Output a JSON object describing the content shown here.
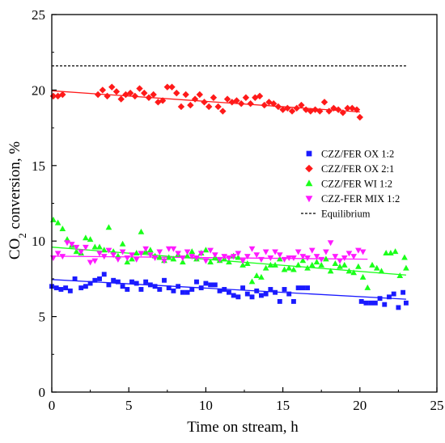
{
  "chart_data": {
    "type": "scatter",
    "title": "",
    "xlabel": "Time on stream, h",
    "ylabel_main": "CO",
    "ylabel_sub": "2",
    "ylabel_rest": " conversion, %",
    "xlim": [
      0,
      25
    ],
    "ylim": [
      0,
      25
    ],
    "xticks": [
      0,
      5,
      10,
      15,
      20,
      25
    ],
    "yticks": [
      0,
      5,
      10,
      15,
      20,
      25
    ],
    "x_tick_labels": [
      "0",
      "5",
      "10",
      "15",
      "20",
      "25"
    ],
    "y_tick_labels": [
      "0",
      "5",
      "10",
      "15",
      "20",
      "25"
    ],
    "grid": false,
    "legend_position": "right",
    "equilibrium": {
      "name": "Equilibrium",
      "y": 21.6,
      "x_range": [
        0,
        23
      ],
      "color": "#000000",
      "style": "dotted"
    },
    "series": [
      {
        "name": "CZZ/FER OX 1:2",
        "marker": "square",
        "color": "#1a1aff",
        "trend": [
          [
            0,
            7.45
          ],
          [
            23,
            6.15
          ]
        ],
        "points": [
          [
            0.0,
            7.0
          ],
          [
            0.3,
            6.9
          ],
          [
            0.6,
            6.8
          ],
          [
            0.9,
            6.9
          ],
          [
            1.2,
            6.7
          ],
          [
            1.5,
            7.5
          ],
          [
            1.9,
            6.9
          ],
          [
            2.2,
            7.0
          ],
          [
            2.5,
            7.2
          ],
          [
            2.8,
            7.4
          ],
          [
            3.1,
            7.5
          ],
          [
            3.4,
            7.8
          ],
          [
            3.7,
            7.1
          ],
          [
            4.0,
            7.4
          ],
          [
            4.3,
            7.3
          ],
          [
            4.6,
            7.0
          ],
          [
            4.9,
            6.8
          ],
          [
            5.2,
            7.3
          ],
          [
            5.5,
            7.2
          ],
          [
            5.8,
            6.8
          ],
          [
            6.1,
            7.3
          ],
          [
            6.4,
            7.1
          ],
          [
            6.7,
            7.0
          ],
          [
            7.0,
            6.8
          ],
          [
            7.3,
            7.4
          ],
          [
            7.6,
            6.9
          ],
          [
            7.9,
            6.7
          ],
          [
            8.2,
            7.0
          ],
          [
            8.5,
            6.6
          ],
          [
            8.8,
            6.6
          ],
          [
            9.1,
            6.8
          ],
          [
            9.4,
            7.3
          ],
          [
            9.7,
            6.9
          ],
          [
            10.0,
            7.2
          ],
          [
            10.3,
            7.1
          ],
          [
            10.6,
            7.1
          ],
          [
            10.9,
            6.7
          ],
          [
            11.2,
            6.8
          ],
          [
            11.5,
            6.6
          ],
          [
            11.8,
            6.4
          ],
          [
            12.1,
            6.3
          ],
          [
            12.4,
            6.9
          ],
          [
            12.7,
            6.5
          ],
          [
            13.0,
            6.3
          ],
          [
            13.3,
            6.7
          ],
          [
            13.6,
            6.4
          ],
          [
            13.9,
            6.5
          ],
          [
            14.2,
            6.8
          ],
          [
            14.5,
            6.6
          ],
          [
            14.8,
            6.0
          ],
          [
            15.1,
            6.8
          ],
          [
            15.4,
            6.5
          ],
          [
            15.7,
            6.0
          ],
          [
            16.0,
            6.9
          ],
          [
            16.3,
            6.9
          ],
          [
            16.6,
            6.9
          ],
          [
            20.1,
            6.0
          ],
          [
            20.4,
            5.9
          ],
          [
            20.7,
            5.9
          ],
          [
            21.0,
            5.9
          ],
          [
            21.3,
            6.2
          ],
          [
            21.6,
            5.8
          ],
          [
            21.9,
            6.3
          ],
          [
            22.2,
            6.5
          ],
          [
            22.5,
            5.6
          ],
          [
            22.8,
            6.6
          ],
          [
            23.0,
            5.9
          ]
        ]
      },
      {
        "name": "CZZ/FER OX 2:1",
        "marker": "diamond",
        "color": "#ff1a1a",
        "trend": [
          [
            0,
            19.95
          ],
          [
            20,
            18.55
          ]
        ],
        "points": [
          [
            0.1,
            19.6
          ],
          [
            0.4,
            19.6
          ],
          [
            0.7,
            19.7
          ],
          [
            3.0,
            19.7
          ],
          [
            3.3,
            20.0
          ],
          [
            3.6,
            19.6
          ],
          [
            3.9,
            20.2
          ],
          [
            4.2,
            19.9
          ],
          [
            4.5,
            19.4
          ],
          [
            4.8,
            19.7
          ],
          [
            5.1,
            19.8
          ],
          [
            5.4,
            19.6
          ],
          [
            5.7,
            20.1
          ],
          [
            6.0,
            19.8
          ],
          [
            6.3,
            19.5
          ],
          [
            6.6,
            19.7
          ],
          [
            6.9,
            19.2
          ],
          [
            7.2,
            19.3
          ],
          [
            7.5,
            20.2
          ],
          [
            7.8,
            20.2
          ],
          [
            8.1,
            19.8
          ],
          [
            8.4,
            18.9
          ],
          [
            8.7,
            19.7
          ],
          [
            9.0,
            19.0
          ],
          [
            9.3,
            19.4
          ],
          [
            9.6,
            19.7
          ],
          [
            9.9,
            19.2
          ],
          [
            10.2,
            18.9
          ],
          [
            10.5,
            19.5
          ],
          [
            10.8,
            18.9
          ],
          [
            11.1,
            18.6
          ],
          [
            11.4,
            19.4
          ],
          [
            11.7,
            19.2
          ],
          [
            12.0,
            19.3
          ],
          [
            12.3,
            19.1
          ],
          [
            12.6,
            19.5
          ],
          [
            12.9,
            19.1
          ],
          [
            13.2,
            19.5
          ],
          [
            13.5,
            19.6
          ],
          [
            13.8,
            19.0
          ],
          [
            14.1,
            19.2
          ],
          [
            14.4,
            19.1
          ],
          [
            14.7,
            18.9
          ],
          [
            15.0,
            18.7
          ],
          [
            15.3,
            18.8
          ],
          [
            15.6,
            18.6
          ],
          [
            15.9,
            18.8
          ],
          [
            16.2,
            19.0
          ],
          [
            16.5,
            18.7
          ],
          [
            16.8,
            18.6
          ],
          [
            17.1,
            18.7
          ],
          [
            17.4,
            18.6
          ],
          [
            17.7,
            19.2
          ],
          [
            18.0,
            18.6
          ],
          [
            18.3,
            18.8
          ],
          [
            18.6,
            18.7
          ],
          [
            18.9,
            18.5
          ],
          [
            19.2,
            18.8
          ],
          [
            19.5,
            18.8
          ],
          [
            19.8,
            18.7
          ],
          [
            20.0,
            18.2
          ]
        ]
      },
      {
        "name": "CZZ/FER WI 1:2",
        "marker": "triangle-up",
        "color": "#1aff1a",
        "trend": [
          [
            0,
            9.6
          ],
          [
            23,
            7.75
          ]
        ],
        "points": [
          [
            0.1,
            11.4
          ],
          [
            0.4,
            11.2
          ],
          [
            0.7,
            10.8
          ],
          [
            1.0,
            10.1
          ],
          [
            1.3,
            9.7
          ],
          [
            1.6,
            9.3
          ],
          [
            1.9,
            9.2
          ],
          [
            2.2,
            10.2
          ],
          [
            2.5,
            10.1
          ],
          [
            2.8,
            9.6
          ],
          [
            3.1,
            9.6
          ],
          [
            3.4,
            9.4
          ],
          [
            3.7,
            10.9
          ],
          [
            4.0,
            9.3
          ],
          [
            4.3,
            9.0
          ],
          [
            4.6,
            9.8
          ],
          [
            4.9,
            8.6
          ],
          [
            5.2,
            8.8
          ],
          [
            5.5,
            9.2
          ],
          [
            5.8,
            10.6
          ],
          [
            6.1,
            9.3
          ],
          [
            6.4,
            9.4
          ],
          [
            6.7,
            9.0
          ],
          [
            7.0,
            8.9
          ],
          [
            7.3,
            8.7
          ],
          [
            7.6,
            8.9
          ],
          [
            7.9,
            8.8
          ],
          [
            8.2,
            9.1
          ],
          [
            8.5,
            8.6
          ],
          [
            8.8,
            9.0
          ],
          [
            9.1,
            9.3
          ],
          [
            9.4,
            8.8
          ],
          [
            9.7,
            9.2
          ],
          [
            10.0,
            9.4
          ],
          [
            10.3,
            8.6
          ],
          [
            10.6,
            8.9
          ],
          [
            10.9,
            8.7
          ],
          [
            11.2,
            8.8
          ],
          [
            11.5,
            8.6
          ],
          [
            11.8,
            9.0
          ],
          [
            12.1,
            8.9
          ],
          [
            12.4,
            8.4
          ],
          [
            12.7,
            8.5
          ],
          [
            13.0,
            7.3
          ],
          [
            13.3,
            7.7
          ],
          [
            13.6,
            7.6
          ],
          [
            13.9,
            8.2
          ],
          [
            14.2,
            8.4
          ],
          [
            14.5,
            8.4
          ],
          [
            14.8,
            8.8
          ],
          [
            15.1,
            8.1
          ],
          [
            15.4,
            8.2
          ],
          [
            15.7,
            8.1
          ],
          [
            16.0,
            8.4
          ],
          [
            16.3,
            8.7
          ],
          [
            16.6,
            8.2
          ],
          [
            16.9,
            8.4
          ],
          [
            17.2,
            8.6
          ],
          [
            17.5,
            8.4
          ],
          [
            17.8,
            8.8
          ],
          [
            18.1,
            8.0
          ],
          [
            18.4,
            8.5
          ],
          [
            18.7,
            8.3
          ],
          [
            19.0,
            8.4
          ],
          [
            19.3,
            8.0
          ],
          [
            19.6,
            7.9
          ],
          [
            19.9,
            8.3
          ],
          [
            20.2,
            7.6
          ],
          [
            20.5,
            6.9
          ],
          [
            20.8,
            8.4
          ],
          [
            21.1,
            8.2
          ],
          [
            21.4,
            8.0
          ],
          [
            21.7,
            9.2
          ],
          [
            22.0,
            9.2
          ],
          [
            22.3,
            9.3
          ],
          [
            22.6,
            7.7
          ],
          [
            22.9,
            8.9
          ],
          [
            23.0,
            8.2
          ]
        ]
      },
      {
        "name": "CZZ-FER MIX 1:2",
        "marker": "triangle-down",
        "color": "#ff1aff",
        "trend": [
          [
            0,
            9.0
          ],
          [
            20.5,
            8.8
          ]
        ],
        "points": [
          [
            0.1,
            8.9
          ],
          [
            0.4,
            9.2
          ],
          [
            0.7,
            9.0
          ],
          [
            1.0,
            9.9
          ],
          [
            1.3,
            9.8
          ],
          [
            1.6,
            9.6
          ],
          [
            1.9,
            9.3
          ],
          [
            2.2,
            9.6
          ],
          [
            2.5,
            8.6
          ],
          [
            2.8,
            8.7
          ],
          [
            3.1,
            9.2
          ],
          [
            3.4,
            9.0
          ],
          [
            3.7,
            9.4
          ],
          [
            4.0,
            9.1
          ],
          [
            4.3,
            8.8
          ],
          [
            4.6,
            9.3
          ],
          [
            4.9,
            8.9
          ],
          [
            5.2,
            9.1
          ],
          [
            5.5,
            8.8
          ],
          [
            5.8,
            9.2
          ],
          [
            6.1,
            9.5
          ],
          [
            6.4,
            9.1
          ],
          [
            6.7,
            8.9
          ],
          [
            7.0,
            9.3
          ],
          [
            7.3,
            8.7
          ],
          [
            7.6,
            9.5
          ],
          [
            7.9,
            9.5
          ],
          [
            8.2,
            9.2
          ],
          [
            8.5,
            8.9
          ],
          [
            8.8,
            9.3
          ],
          [
            9.1,
            9.0
          ],
          [
            9.4,
            8.9
          ],
          [
            9.7,
            9.2
          ],
          [
            10.0,
            8.7
          ],
          [
            10.3,
            9.4
          ],
          [
            10.6,
            9.1
          ],
          [
            10.9,
            8.8
          ],
          [
            11.2,
            9.0
          ],
          [
            11.5,
            8.9
          ],
          [
            11.8,
            9.0
          ],
          [
            12.1,
            9.2
          ],
          [
            12.4,
            8.7
          ],
          [
            12.7,
            9.0
          ],
          [
            13.0,
            9.5
          ],
          [
            13.3,
            9.1
          ],
          [
            13.6,
            8.8
          ],
          [
            13.9,
            9.3
          ],
          [
            14.2,
            8.9
          ],
          [
            14.5,
            9.3
          ],
          [
            14.8,
            9.1
          ],
          [
            15.1,
            8.8
          ],
          [
            15.4,
            8.9
          ],
          [
            15.7,
            8.9
          ],
          [
            16.0,
            9.3
          ],
          [
            16.3,
            9.0
          ],
          [
            16.6,
            8.9
          ],
          [
            16.9,
            9.4
          ],
          [
            17.2,
            9.0
          ],
          [
            17.5,
            8.8
          ],
          [
            17.8,
            9.3
          ],
          [
            18.1,
            9.9
          ],
          [
            18.4,
            9.0
          ],
          [
            18.7,
            8.7
          ],
          [
            19.0,
            8.9
          ],
          [
            19.3,
            9.2
          ],
          [
            19.6,
            9.0
          ],
          [
            19.9,
            9.4
          ],
          [
            20.2,
            9.3
          ]
        ]
      }
    ]
  }
}
